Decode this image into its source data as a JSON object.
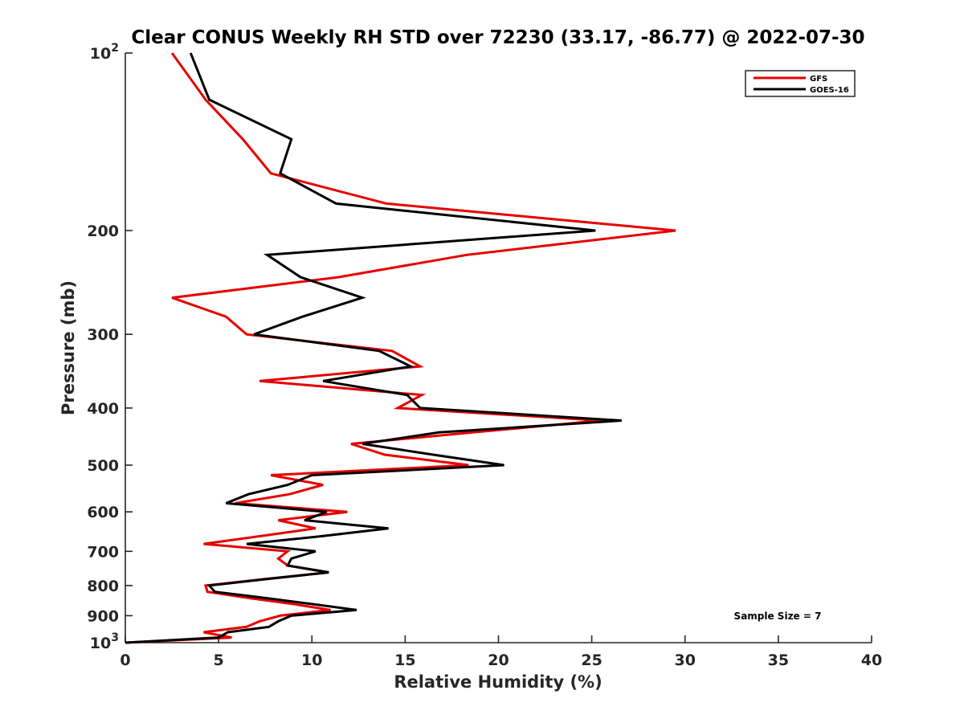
{
  "chart_data": {
    "type": "line",
    "title": "Clear CONUS Weekly RH STD over 72230 (33.17, -86.77) @ 2022-07-30",
    "xlabel": "Relative Humidity (%)",
    "ylabel": "Pressure (mb)",
    "xlim": [
      0,
      40
    ],
    "ylim": [
      100,
      1000
    ],
    "yscale": "log",
    "yreversed": true,
    "grid": false,
    "legend_position": "top-right",
    "xticks": [
      0,
      5,
      10,
      15,
      20,
      25,
      30,
      35,
      40
    ],
    "xtick_labels": [
      "0",
      "5",
      "10",
      "15",
      "20",
      "25",
      "30",
      "35",
      "40"
    ],
    "yticks": [
      100,
      200,
      300,
      400,
      500,
      600,
      700,
      800,
      900,
      1000
    ],
    "ytick_labels": [
      {
        "base": "10",
        "sup": "2"
      },
      {
        "base": "200",
        "sup": ""
      },
      {
        "base": "300",
        "sup": ""
      },
      {
        "base": "400",
        "sup": ""
      },
      {
        "base": "500",
        "sup": ""
      },
      {
        "base": "600",
        "sup": ""
      },
      {
        "base": "700",
        "sup": ""
      },
      {
        "base": "800",
        "sup": ""
      },
      {
        "base": "900",
        "sup": ""
      },
      {
        "base": "10",
        "sup": "3"
      }
    ],
    "pressure_levels": [
      100,
      120,
      140,
      160,
      180,
      200,
      220,
      240,
      260,
      280,
      300,
      320,
      340,
      360,
      380,
      400,
      420,
      440,
      460,
      480,
      500,
      520,
      540,
      560,
      580,
      600,
      620,
      640,
      660,
      680,
      700,
      720,
      740,
      760,
      780,
      800,
      820,
      840,
      860,
      880,
      900,
      920,
      940,
      960,
      980,
      1000
    ],
    "series": [
      {
        "name": "GFS",
        "color": "#e60000",
        "values": [
          2.5,
          4.3,
          6.3,
          7.8,
          14.0,
          29.5,
          18.3,
          11.4,
          2.5,
          5.4,
          6.5,
          14.3,
          15.8,
          7.2,
          15.9,
          14.6,
          25.5,
          18.6,
          12.1,
          13.9,
          18.4,
          7.8,
          10.6,
          8.8,
          5.9,
          11.9,
          8.2,
          10.2,
          7.2,
          4.2,
          8.7,
          8.2,
          8.7,
          10.9,
          7.5,
          4.3,
          4.4,
          6.6,
          9.0,
          11.0,
          8.3,
          7.2,
          6.5,
          4.2,
          5.7,
          0.0
        ]
      },
      {
        "name": "GOES-16",
        "color": "#000000",
        "values": [
          3.5,
          4.5,
          8.9,
          8.3,
          11.3,
          25.2,
          7.6,
          9.4,
          12.7,
          9.5,
          6.9,
          13.6,
          15.3,
          10.6,
          15.1,
          15.8,
          26.6,
          16.8,
          12.7,
          16.5,
          20.3,
          10.0,
          8.7,
          6.6,
          5.4,
          10.8,
          9.6,
          14.1,
          10.5,
          6.5,
          10.2,
          8.9,
          8.7,
          10.9,
          7.6,
          4.5,
          4.8,
          7.5,
          10.0,
          12.4,
          8.9,
          8.2,
          7.7,
          5.5,
          5.0,
          0.0
        ]
      }
    ],
    "annotations": [
      "Sample Size = 7"
    ]
  }
}
